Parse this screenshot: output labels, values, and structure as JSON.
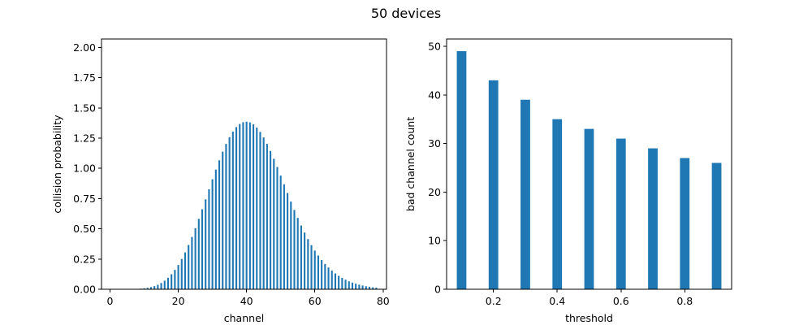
{
  "figure": {
    "title": "50 devices"
  },
  "chart_data": [
    {
      "type": "bar",
      "xlabel": "channel",
      "ylabel": "collision probability",
      "xlim": [
        -2.5,
        81
      ],
      "ylim": [
        0,
        2.07
      ],
      "xticks": [
        0,
        20,
        40,
        60,
        80
      ],
      "xtick_labels": [
        "0",
        "20",
        "40",
        "60",
        "80"
      ],
      "yticks": [
        0,
        0.25,
        0.5,
        0.75,
        1.0,
        1.25,
        1.5,
        1.75,
        2.0
      ],
      "ytick_labels": [
        "0.00",
        "0.25",
        "0.50",
        "0.75",
        "1.00",
        "1.25",
        "1.50",
        "1.75",
        "2.00"
      ],
      "color": "#1f77b4",
      "bar_width": 0.5,
      "x": [
        0,
        1,
        2,
        3,
        4,
        5,
        6,
        7,
        8,
        9,
        10,
        11,
        12,
        13,
        14,
        15,
        16,
        17,
        18,
        19,
        20,
        21,
        22,
        23,
        24,
        25,
        26,
        27,
        28,
        29,
        30,
        31,
        32,
        33,
        34,
        35,
        36,
        37,
        38,
        39,
        40,
        41,
        42,
        43,
        44,
        45,
        46,
        47,
        48,
        49,
        50,
        51,
        52,
        53,
        54,
        55,
        56,
        57,
        58,
        59,
        60,
        61,
        62,
        63,
        64,
        65,
        66,
        67,
        68,
        69,
        70,
        71,
        72,
        73,
        74,
        75,
        76,
        77,
        78
      ],
      "values": [
        0,
        0,
        0,
        0,
        0,
        0.001,
        0.001,
        0.002,
        0.003,
        0.005,
        0.008,
        0.012,
        0.018,
        0.026,
        0.037,
        0.052,
        0.071,
        0.095,
        0.124,
        0.16,
        0.201,
        0.25,
        0.305,
        0.366,
        0.433,
        0.505,
        0.582,
        0.662,
        0.744,
        0.827,
        0.91,
        0.99,
        1.067,
        1.138,
        1.202,
        1.258,
        1.304,
        1.341,
        1.367,
        1.382,
        1.386,
        1.38,
        1.364,
        1.337,
        1.301,
        1.256,
        1.203,
        1.144,
        1.079,
        1.011,
        0.94,
        0.868,
        0.796,
        0.725,
        0.656,
        0.59,
        0.527,
        0.469,
        0.415,
        0.365,
        0.32,
        0.279,
        0.242,
        0.209,
        0.18,
        0.154,
        0.131,
        0.111,
        0.094,
        0.079,
        0.066,
        0.055,
        0.046,
        0.038,
        0.031,
        0.025,
        0.02,
        0.016,
        0.013
      ]
    },
    {
      "type": "bar",
      "xlabel": "threshold",
      "ylabel": "bad channel count",
      "xlim": [
        0.053,
        0.947
      ],
      "ylim": [
        0,
        51.5
      ],
      "xticks": [
        0.2,
        0.4,
        0.6,
        0.8
      ],
      "xtick_labels": [
        "0.2",
        "0.4",
        "0.6",
        "0.8"
      ],
      "yticks": [
        0,
        10,
        20,
        30,
        40,
        50
      ],
      "ytick_labels": [
        "0",
        "10",
        "20",
        "30",
        "40",
        "50"
      ],
      "color": "#1f77b4",
      "bar_width": 0.03,
      "x": [
        0.1,
        0.2,
        0.3,
        0.4,
        0.5,
        0.6,
        0.7,
        0.8,
        0.9
      ],
      "values": [
        49,
        43,
        39,
        35,
        33,
        31,
        29,
        27,
        26
      ]
    }
  ]
}
